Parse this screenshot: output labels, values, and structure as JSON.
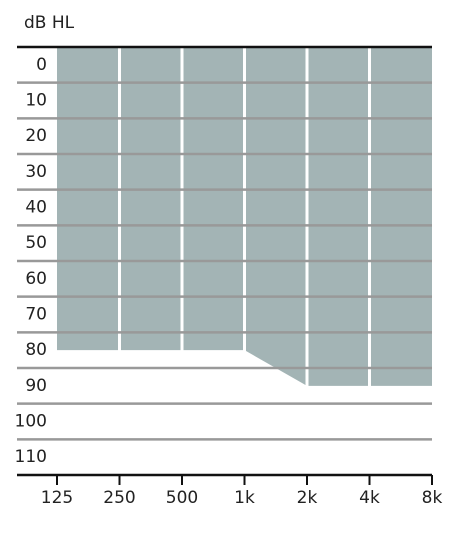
{
  "chart_data": {
    "type": "area",
    "ylabel": "dB HL",
    "categories": [
      "125",
      "250",
      "500",
      "1k",
      "2k",
      "4k",
      "8k"
    ],
    "values": [
      80,
      80,
      80,
      80,
      90,
      90,
      90
    ],
    "color": "#a3b4b5",
    "ylim": [
      -5,
      115
    ],
    "yticks": [
      0,
      10,
      20,
      30,
      40,
      50,
      60,
      70,
      80,
      90,
      100,
      110
    ],
    "y_inverted": true,
    "grid": true
  }
}
